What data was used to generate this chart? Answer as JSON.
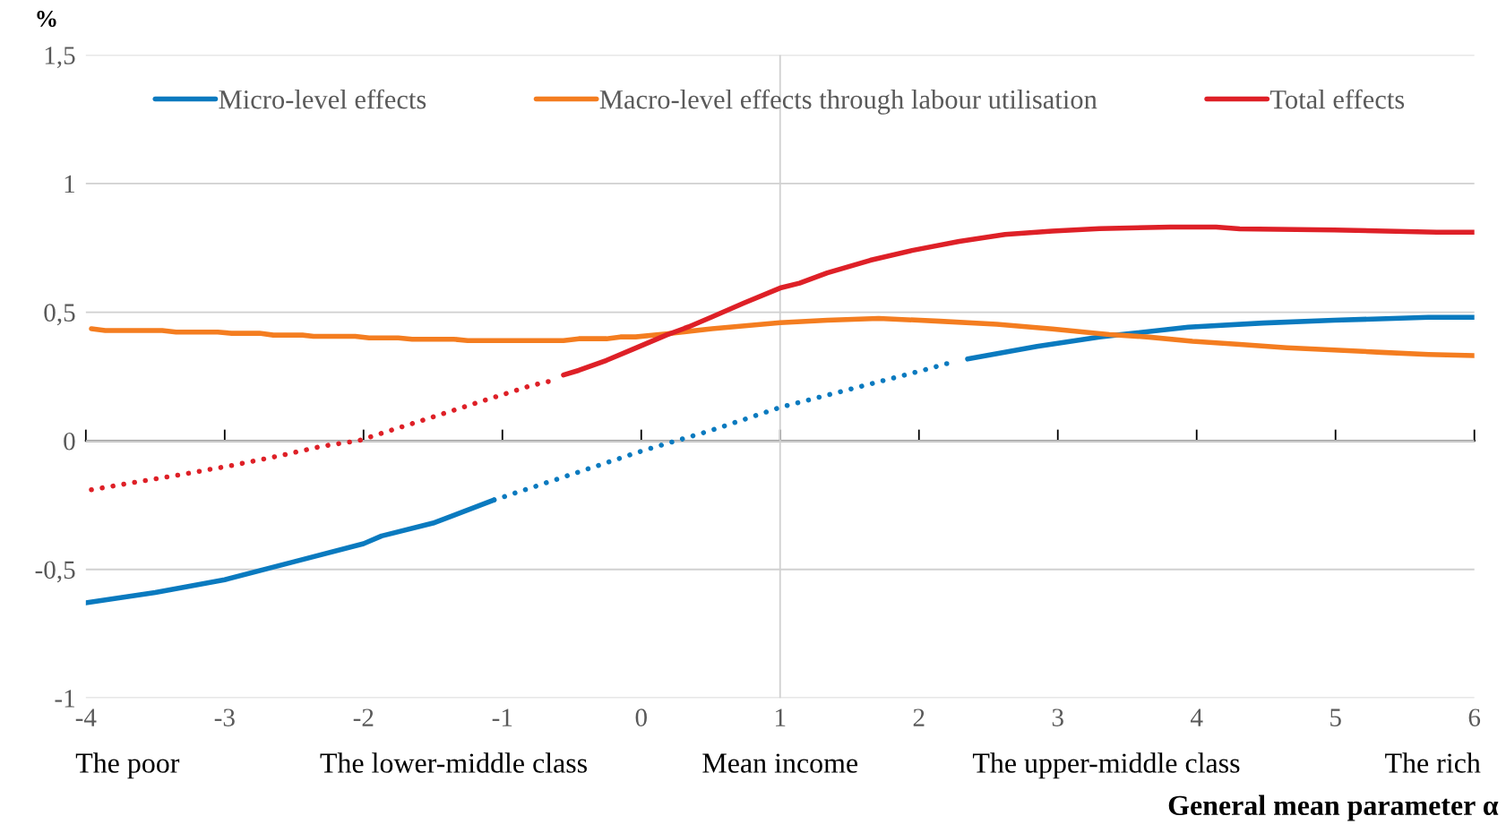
{
  "chart_data": {
    "type": "line",
    "xlabel": "General mean parameter α",
    "ylabel": "%",
    "xlim": [
      -4,
      6
    ],
    "xticks": [
      -4,
      -3,
      -2,
      -1,
      0,
      1,
      2,
      3,
      4,
      5,
      6
    ],
    "ylim": [
      -1,
      1.5
    ],
    "yticks": [
      {
        "value": -1,
        "label": "-1"
      },
      {
        "value": -0.5,
        "label": "-0,5"
      },
      {
        "value": 0,
        "label": "0"
      },
      {
        "value": 0.5,
        "label": "0,5"
      },
      {
        "value": 1,
        "label": "1"
      },
      {
        "value": 1.5,
        "label": "1,5"
      }
    ],
    "grid": "y",
    "legend": "top",
    "ref_lines": [
      {
        "axis": "x",
        "value": 1,
        "color": "#d0d0d0"
      }
    ],
    "annotations": [
      "The poor",
      "The lower-middle class",
      "Mean income",
      "The upper-middle class",
      "The rich"
    ],
    "series": [
      {
        "name": "Micro-level effects",
        "color": "#0a7abf",
        "line_style": "solid",
        "x": [
          -4,
          -3.5,
          -3,
          -2.5,
          -2,
          -1.87,
          -1.5,
          -1.06
        ],
        "values": [
          -0.63,
          -0.59,
          -0.54,
          -0.47,
          -0.4,
          -0.37,
          -0.32,
          -0.23
        ]
      },
      {
        "color": "#0a7abf",
        "line_style": "dotted",
        "x": [
          -1.06,
          -0.5,
          0,
          0.25,
          0.5,
          1,
          1.5,
          2,
          2.2
        ],
        "values": [
          -0.23,
          -0.13,
          -0.04,
          0.0,
          0.04,
          0.13,
          0.2,
          0.27,
          0.3
        ]
      },
      {
        "color": "#0a7abf",
        "line_style": "solid",
        "x": [
          2.35,
          2.85,
          3.3,
          3.94,
          4.48,
          4.99,
          5.67,
          6
        ],
        "values": [
          0.318,
          0.367,
          0.404,
          0.442,
          0.458,
          0.469,
          0.48,
          0.48
        ]
      },
      {
        "name": "Macro-level effects through labour utilisation",
        "color": "#f47d20",
        "line_style": "solid",
        "x": [
          -3.96,
          -3.86,
          -3.45,
          -3.35,
          -3.05,
          -2.95,
          -2.75,
          -2.65,
          -2.44,
          -2.36,
          -2.06,
          -1.96,
          -1.75,
          -1.65,
          -1.35,
          -1.25,
          -0.56,
          -0.45,
          -0.25,
          -0.15,
          -0.04,
          0.18,
          0.51,
          1.0,
          1.34,
          1.71,
          2.15,
          2.56,
          2.96,
          3.37,
          3.64,
          3.97,
          4.31,
          4.65,
          4.99,
          5.33,
          5.67,
          6
        ],
        "values": [
          0.436,
          0.429,
          0.429,
          0.423,
          0.423,
          0.418,
          0.418,
          0.411,
          0.411,
          0.406,
          0.406,
          0.4,
          0.4,
          0.395,
          0.395,
          0.39,
          0.39,
          0.397,
          0.397,
          0.404,
          0.404,
          0.416,
          0.436,
          0.459,
          0.469,
          0.476,
          0.465,
          0.453,
          0.435,
          0.413,
          0.404,
          0.387,
          0.375,
          0.362,
          0.353,
          0.344,
          0.336,
          0.331
        ]
      },
      {
        "color": "#de2027",
        "line_style": "dotted",
        "x": [
          -3.96,
          -3.61,
          -3.28,
          -2.95,
          -2.62,
          -2.29,
          -2.04,
          -1.79,
          -1.46,
          -1.13,
          -0.8,
          -0.67
        ],
        "values": [
          -0.19,
          -0.158,
          -0.128,
          -0.096,
          -0.06,
          -0.02,
          0.0,
          0.043,
          0.1,
          0.157,
          0.214,
          0.23
        ]
      },
      {
        "name": "Total effects",
        "color": "#de2027",
        "line_style": "solid",
        "x": [
          -0.56,
          -0.45,
          -0.25,
          -0.06,
          0.18,
          0.34,
          0.51,
          0.74,
          1.0,
          1.14,
          1.34,
          1.65,
          1.95,
          2.29,
          2.62,
          2.96,
          3.3,
          3.81,
          4.14,
          4.31,
          4.99,
          5.73,
          6
        ],
        "values": [
          0.256,
          0.274,
          0.313,
          0.356,
          0.411,
          0.443,
          0.482,
          0.536,
          0.594,
          0.613,
          0.653,
          0.702,
          0.74,
          0.775,
          0.802,
          0.815,
          0.825,
          0.831,
          0.831,
          0.824,
          0.82,
          0.811,
          0.811
        ]
      }
    ]
  }
}
